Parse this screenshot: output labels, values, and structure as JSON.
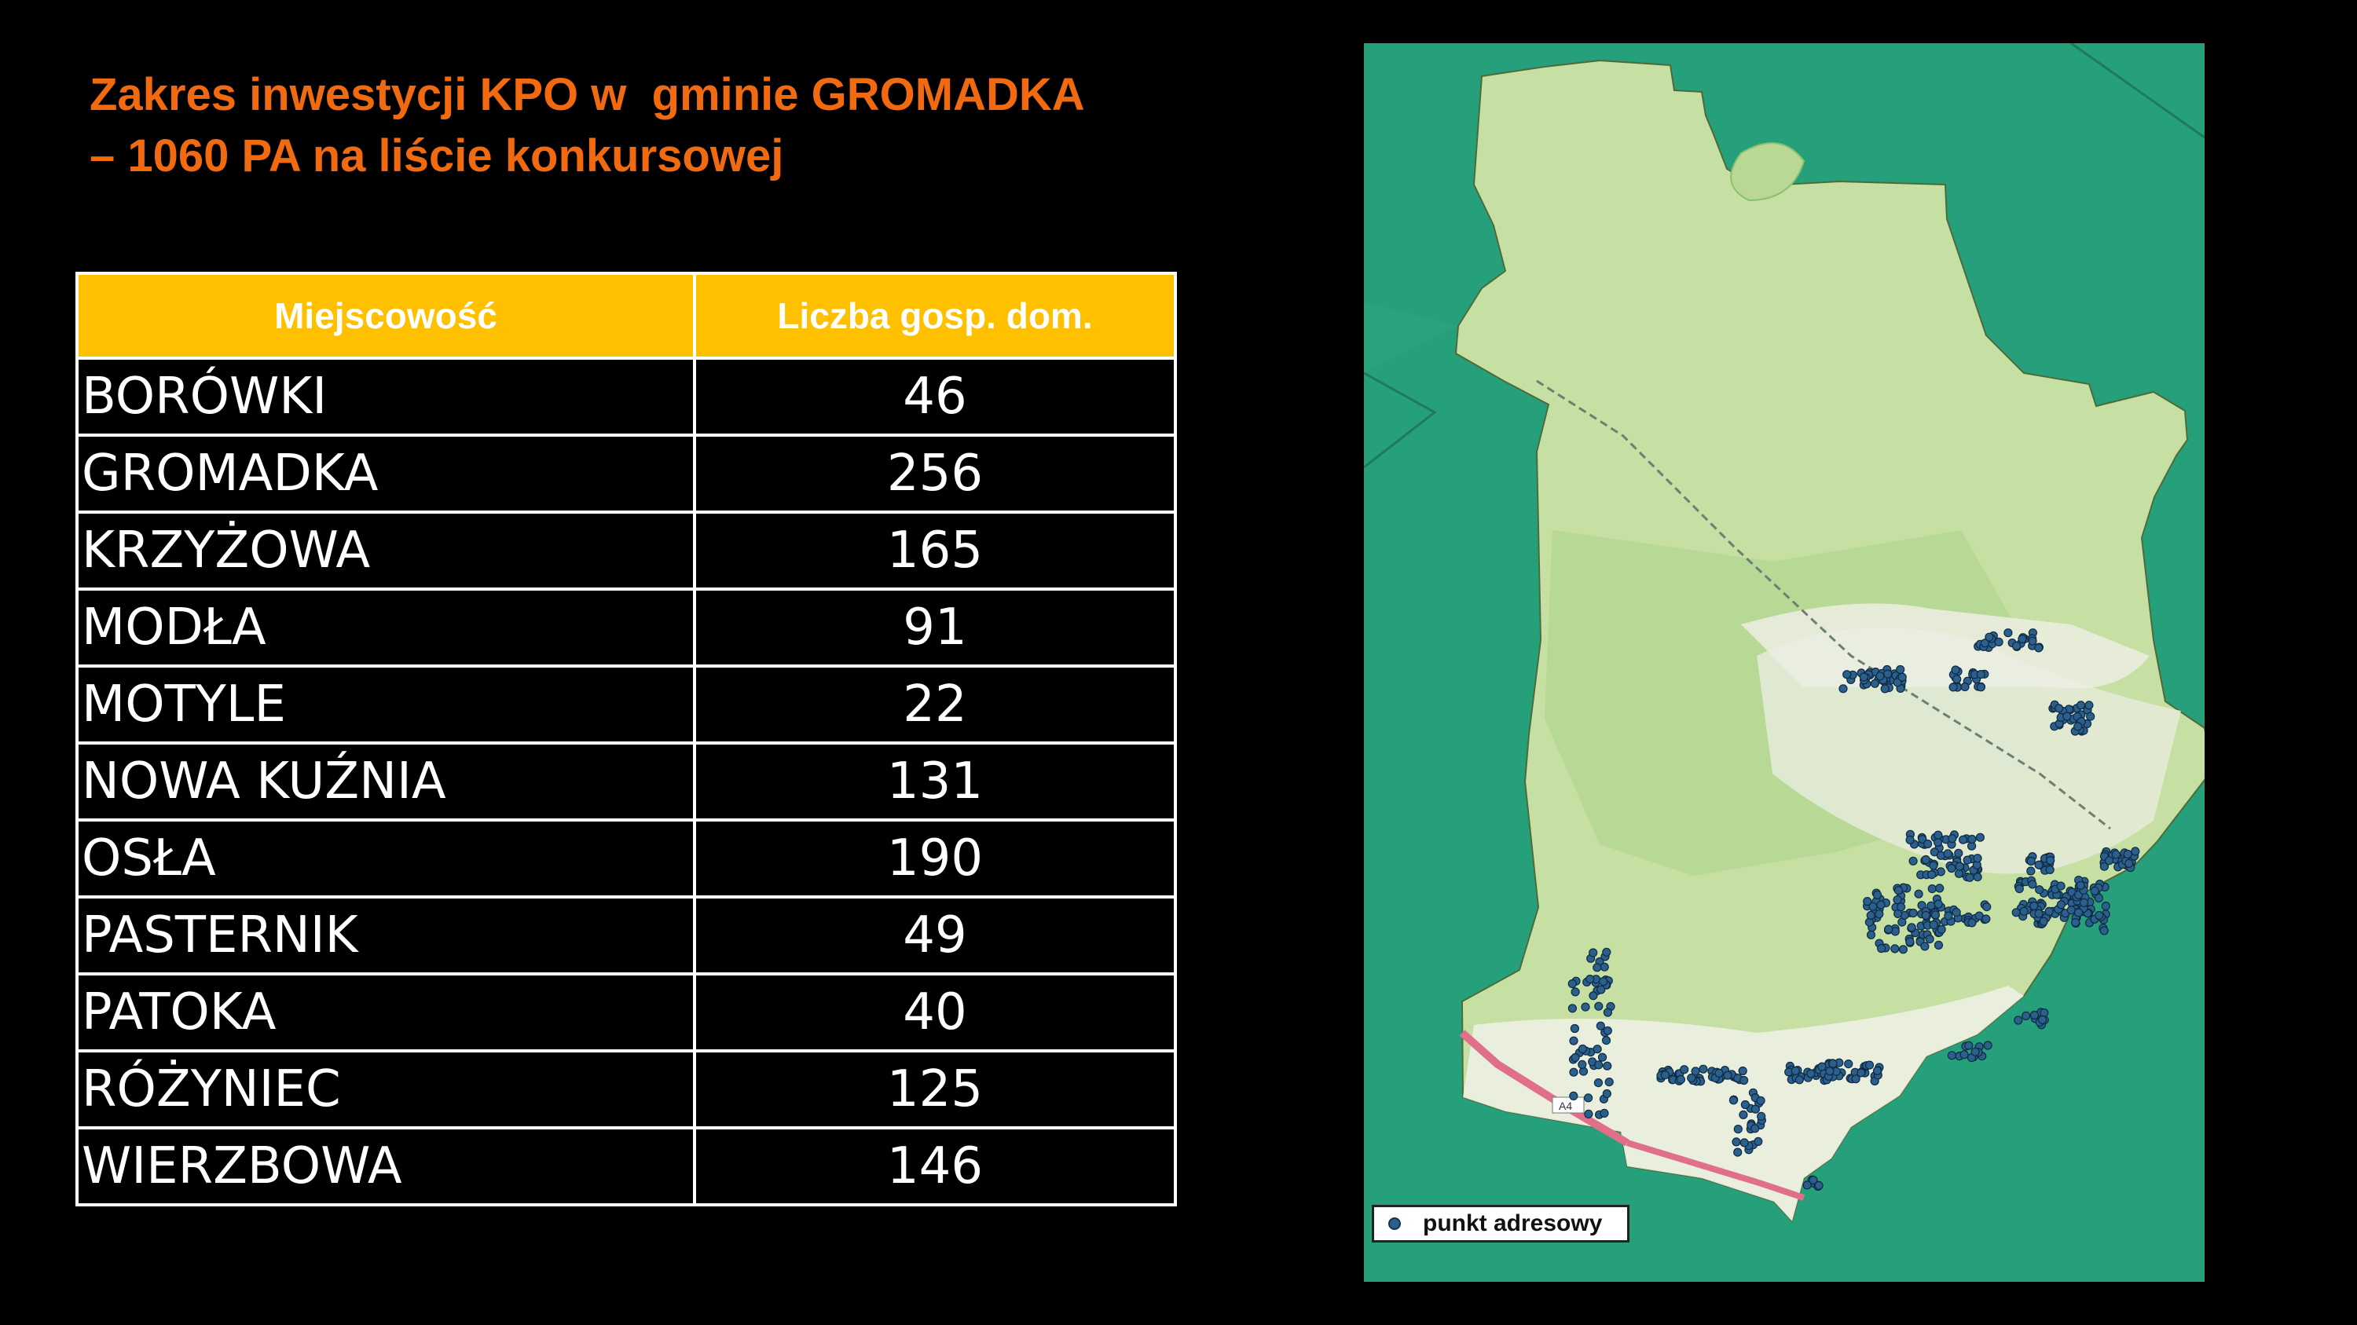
{
  "title": {
    "line1": "Zakres inwestycji KPO w  gminie GROMADKA",
    "line2": "– 1060 PA na liście konkursowej"
  },
  "table": {
    "headers": [
      "Miejscowość",
      "Liczba gosp. dom."
    ],
    "rows": [
      {
        "name": "BORÓWKI",
        "count": "46"
      },
      {
        "name": "GROMADKA",
        "count": "256"
      },
      {
        "name": "KRZYŻOWA",
        "count": "165"
      },
      {
        "name": "MODŁA",
        "count": "91"
      },
      {
        "name": "MOTYLE",
        "count": "22"
      },
      {
        "name": "NOWA KUŹNIA",
        "count": "131"
      },
      {
        "name": "OSŁA",
        "count": "190"
      },
      {
        "name": "PASTERNIK",
        "count": "49"
      },
      {
        "name": "PATOKA",
        "count": "40"
      },
      {
        "name": "RÓŻYNIEC",
        "count": "125"
      },
      {
        "name": "WIERZBOWA",
        "count": "146"
      }
    ]
  },
  "map": {
    "legend_label": "punkt adresowy",
    "road_label": "A4",
    "colors": {
      "background": "#26a07a",
      "municipality": "#c6dfa3",
      "forest": "#b2d48e",
      "built_up": "#ecefe3",
      "address_point": "#2b5f8c",
      "motorway": "#e0708a"
    }
  },
  "colors": {
    "title": "#f26a10",
    "header_bg": "#ffc000",
    "header_text": "#ffffff",
    "cell_text": "#ffffff",
    "page_bg": "#000000"
  }
}
